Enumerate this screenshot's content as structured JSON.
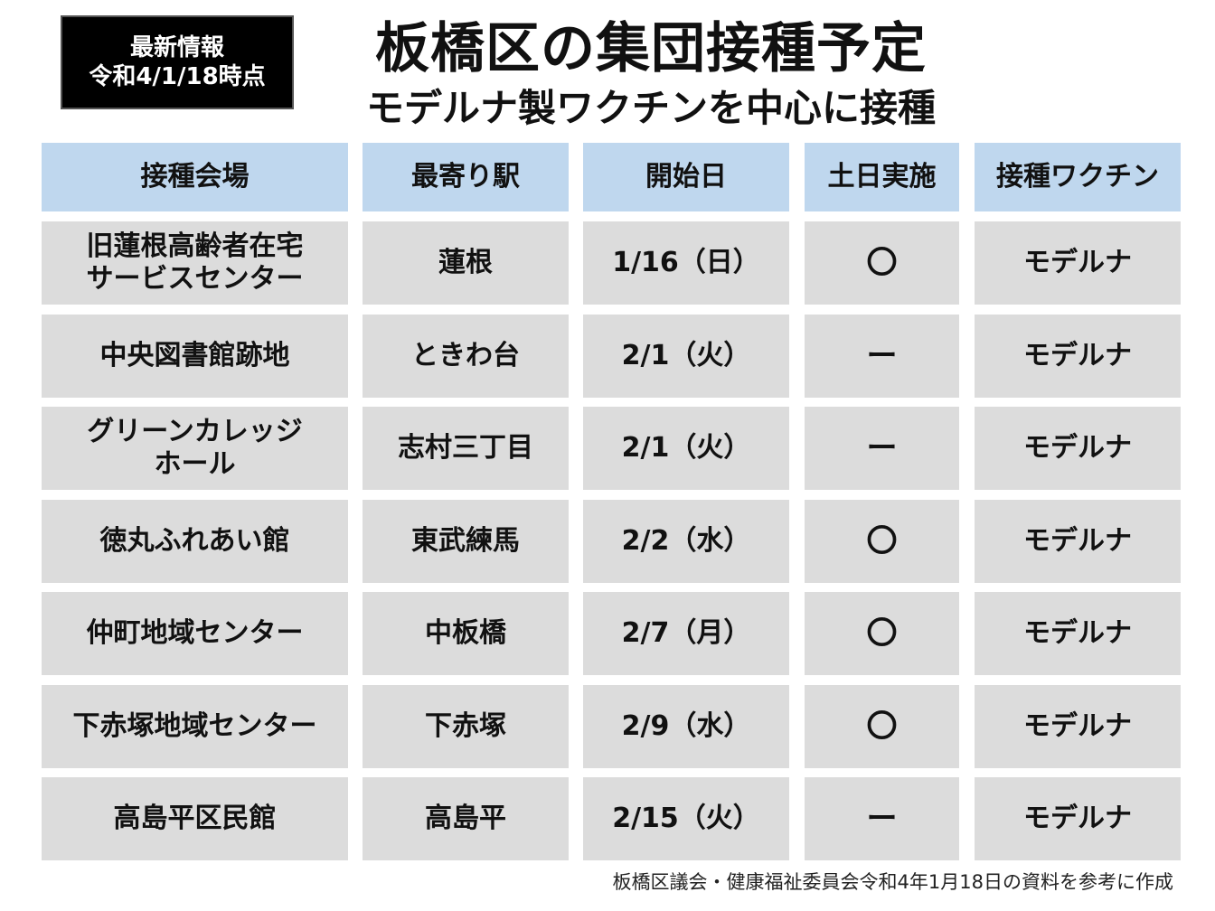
{
  "badge": {
    "line1": "最新情報",
    "line2": "令和4/1/18時点"
  },
  "title": "板橋区の集団接種予定",
  "subtitle": "モデルナ製ワクチンを中心に接種",
  "table": {
    "headers": [
      "接種会場",
      "最寄り駅",
      "開始日",
      "土日実施",
      "接種ワクチン"
    ],
    "rows": [
      [
        "旧蓮根高齢者在宅\nサービスセンター",
        "蓮根",
        "1/16（日）",
        "〇",
        "モデルナ"
      ],
      [
        "中央図書館跡地",
        "ときわ台",
        "2/1（火）",
        "ー",
        "モデルナ"
      ],
      [
        "グリーンカレッジ\nホール",
        "志村三丁目",
        "2/1（火）",
        "ー",
        "モデルナ"
      ],
      [
        "徳丸ふれあい館",
        "東武練馬",
        "2/2（水）",
        "〇",
        "モデルナ"
      ],
      [
        "仲町地域センター",
        "中板橋",
        "2/7（月）",
        "〇",
        "モデルナ"
      ],
      [
        "下赤塚地域センター",
        "下赤塚",
        "2/9（水）",
        "〇",
        "モデルナ"
      ],
      [
        "高島平区民館",
        "高島平",
        "2/15（火）",
        "ー",
        "モデルナ"
      ]
    ]
  },
  "footer": "板橋区議会・健康福祉委員会令和4年1月18日の資料を参考に作成",
  "colors": {
    "header_bg": "#bfd7ee",
    "cell_bg": "#dcdcdc",
    "badge_bg": "#000000"
  }
}
